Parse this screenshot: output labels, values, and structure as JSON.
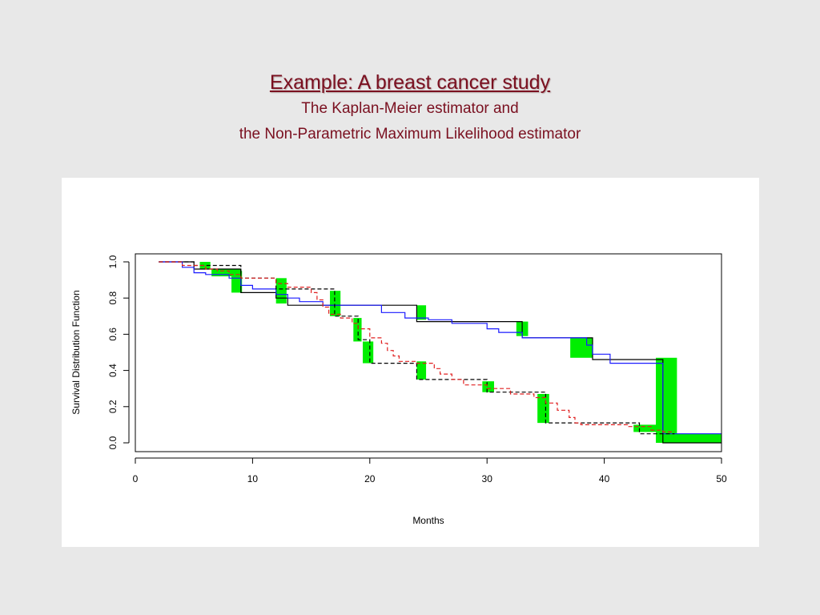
{
  "slide": {
    "title": "Example: A breast cancer study",
    "subtitle_line1": "The Kaplan-Meier estimator and",
    "subtitle_line2": "the Non-Parametric Maximum Likelihood estimator"
  },
  "colors": {
    "background": "#e8e8e8",
    "title": "#7a1020",
    "km": "#000000",
    "blue_curve": "#1a1aff",
    "red_curve": "#e02020",
    "intervals": "#00ee00"
  },
  "chart_data": {
    "type": "line",
    "title": "",
    "xlabel": "Months",
    "ylabel": "Survival Distribution Function",
    "xlim": [
      0,
      50
    ],
    "ylim": [
      0.0,
      1.0
    ],
    "x_ticks": [
      0,
      10,
      20,
      30,
      40,
      50
    ],
    "y_ticks": [
      "0.0",
      "0.2",
      "0.4",
      "0.6",
      "0.8",
      "1.0"
    ],
    "grid": false,
    "legend": "none",
    "series": [
      {
        "style": "solid",
        "color": "#000000",
        "points": [
          [
            2,
            1.0
          ],
          [
            5,
            1.0
          ],
          [
            5,
            0.96
          ],
          [
            9,
            0.96
          ],
          [
            9,
            0.83
          ],
          [
            12,
            0.83
          ],
          [
            12,
            0.8
          ],
          [
            13,
            0.8
          ],
          [
            13,
            0.76
          ],
          [
            24,
            0.76
          ],
          [
            24,
            0.67
          ],
          [
            33,
            0.67
          ],
          [
            33,
            0.58
          ],
          [
            39,
            0.58
          ],
          [
            39,
            0.46
          ],
          [
            45,
            0.46
          ],
          [
            45,
            0.0
          ],
          [
            50,
            0.0
          ]
        ]
      },
      {
        "style": "solid",
        "color": "#1a1aff",
        "points": [
          [
            2,
            1.0
          ],
          [
            4,
            1.0
          ],
          [
            4,
            0.97
          ],
          [
            5,
            0.97
          ],
          [
            5,
            0.94
          ],
          [
            6,
            0.94
          ],
          [
            6,
            0.93
          ],
          [
            8,
            0.93
          ],
          [
            8,
            0.91
          ],
          [
            9,
            0.91
          ],
          [
            9,
            0.87
          ],
          [
            10,
            0.87
          ],
          [
            10,
            0.85
          ],
          [
            12,
            0.85
          ],
          [
            12,
            0.82
          ],
          [
            13,
            0.82
          ],
          [
            13,
            0.8
          ],
          [
            14,
            0.8
          ],
          [
            14,
            0.78
          ],
          [
            16,
            0.78
          ],
          [
            16,
            0.76
          ],
          [
            21,
            0.76
          ],
          [
            21,
            0.72
          ],
          [
            23,
            0.72
          ],
          [
            23,
            0.69
          ],
          [
            25,
            0.69
          ],
          [
            25,
            0.68
          ],
          [
            27,
            0.68
          ],
          [
            27,
            0.66
          ],
          [
            30,
            0.66
          ],
          [
            30,
            0.63
          ],
          [
            31,
            0.63
          ],
          [
            31,
            0.61
          ],
          [
            33,
            0.61
          ],
          [
            33,
            0.58
          ],
          [
            38.5,
            0.58
          ],
          [
            38.5,
            0.54
          ],
          [
            39,
            0.54
          ],
          [
            39,
            0.49
          ],
          [
            40.5,
            0.49
          ],
          [
            40.5,
            0.44
          ],
          [
            45,
            0.44
          ],
          [
            45,
            0.05
          ],
          [
            50,
            0.05
          ]
        ]
      },
      {
        "style": "dashed",
        "color": "#000000",
        "points": [
          [
            2,
            1.0
          ],
          [
            5,
            1.0
          ],
          [
            5,
            0.98
          ],
          [
            9,
            0.98
          ],
          [
            9,
            0.91
          ],
          [
            12,
            0.91
          ],
          [
            12,
            0.85
          ],
          [
            17,
            0.85
          ],
          [
            17,
            0.7
          ],
          [
            19,
            0.7
          ],
          [
            19,
            0.57
          ],
          [
            20,
            0.57
          ],
          [
            20,
            0.44
          ],
          [
            24,
            0.44
          ],
          [
            24,
            0.35
          ],
          [
            30,
            0.35
          ],
          [
            30,
            0.28
          ],
          [
            35,
            0.28
          ],
          [
            35,
            0.11
          ],
          [
            43,
            0.11
          ],
          [
            43,
            0.05
          ],
          [
            46,
            0.05
          ]
        ]
      },
      {
        "style": "dashed",
        "color": "#e02020",
        "points": [
          [
            2,
            1.0
          ],
          [
            4,
            1.0
          ],
          [
            4,
            0.98
          ],
          [
            6,
            0.98
          ],
          [
            6,
            0.96
          ],
          [
            7,
            0.96
          ],
          [
            7,
            0.95
          ],
          [
            8,
            0.95
          ],
          [
            8,
            0.93
          ],
          [
            9,
            0.93
          ],
          [
            9,
            0.91
          ],
          [
            12,
            0.91
          ],
          [
            12,
            0.88
          ],
          [
            13,
            0.88
          ],
          [
            13,
            0.86
          ],
          [
            15,
            0.86
          ],
          [
            15,
            0.83
          ],
          [
            15.5,
            0.83
          ],
          [
            15.5,
            0.79
          ],
          [
            16,
            0.79
          ],
          [
            16,
            0.75
          ],
          [
            16.5,
            0.75
          ],
          [
            16.5,
            0.71
          ],
          [
            17.5,
            0.71
          ],
          [
            17.5,
            0.69
          ],
          [
            18.5,
            0.69
          ],
          [
            18.5,
            0.66
          ],
          [
            19,
            0.66
          ],
          [
            19,
            0.63
          ],
          [
            20,
            0.63
          ],
          [
            20,
            0.58
          ],
          [
            21,
            0.58
          ],
          [
            21,
            0.55
          ],
          [
            21.5,
            0.55
          ],
          [
            21.5,
            0.51
          ],
          [
            22,
            0.51
          ],
          [
            22,
            0.48
          ],
          [
            22.5,
            0.48
          ],
          [
            22.5,
            0.45
          ],
          [
            24,
            0.45
          ],
          [
            24,
            0.44
          ],
          [
            25.5,
            0.44
          ],
          [
            25.5,
            0.41
          ],
          [
            26,
            0.41
          ],
          [
            26,
            0.38
          ],
          [
            27,
            0.38
          ],
          [
            27,
            0.35
          ],
          [
            28,
            0.35
          ],
          [
            28,
            0.32
          ],
          [
            30,
            0.32
          ],
          [
            30,
            0.3
          ],
          [
            32,
            0.3
          ],
          [
            32,
            0.27
          ],
          [
            34,
            0.27
          ],
          [
            34,
            0.25
          ],
          [
            35,
            0.25
          ],
          [
            35,
            0.22
          ],
          [
            36,
            0.22
          ],
          [
            36,
            0.18
          ],
          [
            37,
            0.18
          ],
          [
            37,
            0.14
          ],
          [
            37.5,
            0.14
          ],
          [
            37.5,
            0.11
          ],
          [
            38,
            0.11
          ],
          [
            38,
            0.1
          ],
          [
            42,
            0.1
          ],
          [
            42,
            0.09
          ],
          [
            44,
            0.09
          ],
          [
            44,
            0.07
          ],
          [
            45,
            0.07
          ],
          [
            45,
            0.06
          ],
          [
            46,
            0.06
          ]
        ]
      }
    ],
    "intervals": [
      {
        "x0": 5.5,
        "x1": 6.4,
        "y0": 0.96,
        "y1": 1.0
      },
      {
        "x0": 6.5,
        "x1": 9.0,
        "y0": 0.92,
        "y1": 0.96
      },
      {
        "x0": 8.2,
        "x1": 9.1,
        "y0": 0.83,
        "y1": 0.95
      },
      {
        "x0": 12.0,
        "x1": 12.9,
        "y0": 0.77,
        "y1": 0.91
      },
      {
        "x0": 16.6,
        "x1": 17.5,
        "y0": 0.7,
        "y1": 0.84
      },
      {
        "x0": 18.6,
        "x1": 19.3,
        "y0": 0.56,
        "y1": 0.69
      },
      {
        "x0": 19.4,
        "x1": 20.3,
        "y0": 0.44,
        "y1": 0.56
      },
      {
        "x0": 24.0,
        "x1": 24.8,
        "y0": 0.35,
        "y1": 0.45
      },
      {
        "x0": 24.0,
        "x1": 24.8,
        "y0": 0.68,
        "y1": 0.76
      },
      {
        "x0": 29.6,
        "x1": 30.6,
        "y0": 0.28,
        "y1": 0.34
      },
      {
        "x0": 32.5,
        "x1": 33.5,
        "y0": 0.59,
        "y1": 0.67
      },
      {
        "x0": 34.3,
        "x1": 35.3,
        "y0": 0.11,
        "y1": 0.27
      },
      {
        "x0": 37.1,
        "x1": 39.0,
        "y0": 0.47,
        "y1": 0.58
      },
      {
        "x0": 42.5,
        "x1": 44.5,
        "y0": 0.06,
        "y1": 0.1
      },
      {
        "x0": 44.4,
        "x1": 46.2,
        "y0": 0.0,
        "y1": 0.47
      },
      {
        "x0": 46.0,
        "x1": 50.0,
        "y0": 0.0,
        "y1": 0.05
      }
    ]
  }
}
